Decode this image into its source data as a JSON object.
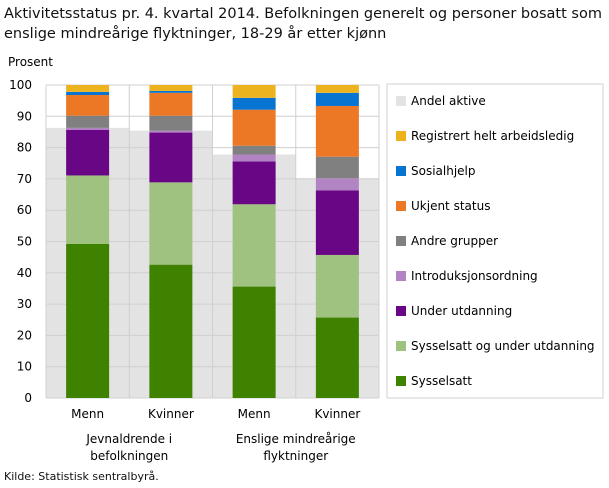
{
  "chart_data": {
    "type": "bar",
    "stacked": true,
    "title": "Aktivitetsstatus pr. 4. kvartal 2014. Befolkningen generelt og personer bosatt som enslige mindreårige flyktninger, 18-29 år etter kjønn",
    "ylabel": "Prosent",
    "ylim": [
      0,
      100
    ],
    "yticks": [
      0,
      10,
      20,
      30,
      40,
      50,
      60,
      70,
      80,
      90,
      100
    ],
    "grid": true,
    "legend_position": "right",
    "categories": [
      "Menn",
      "Kvinner",
      "Menn",
      "Kvinner"
    ],
    "groups": [
      {
        "label": "Jevnaldrende i befolkningen",
        "categories": [
          0,
          1
        ]
      },
      {
        "label": "Enslige mindreårige flyktninger",
        "categories": [
          2,
          3
        ]
      }
    ],
    "background_series": {
      "name": "Andel aktive",
      "color": "#e3e3e3",
      "values": [
        86.3,
        85.4,
        77.8,
        70.2
      ]
    },
    "series": [
      {
        "name": "Sysselsatt",
        "color": "#3e8200",
        "values": [
          49.2,
          42.6,
          35.6,
          25.7
        ]
      },
      {
        "name": "Sysselsatt og under utdanning",
        "color": "#9fc280",
        "values": [
          21.9,
          26.3,
          26.3,
          20.0
        ]
      },
      {
        "name": "Under utdanning",
        "color": "#690686",
        "values": [
          14.6,
          15.9,
          13.7,
          20.6
        ]
      },
      {
        "name": "Introduksjonsordning",
        "color": "#b384c3",
        "values": [
          0.6,
          0.6,
          2.2,
          3.9
        ]
      },
      {
        "name": "Andre grupper",
        "color": "#808080",
        "values": [
          3.9,
          4.8,
          2.8,
          6.9
        ]
      },
      {
        "name": "Ukjent status",
        "color": "#ec7724",
        "values": [
          6.6,
          7.3,
          11.5,
          16.2
        ]
      },
      {
        "name": "Sosialhjelp",
        "color": "#0774d1",
        "values": [
          1.0,
          0.6,
          3.8,
          4.2
        ]
      },
      {
        "name": "Registrert helt arbeidsledig",
        "color": "#edb31f",
        "values": [
          2.2,
          1.9,
          4.1,
          2.5
        ]
      }
    ]
  },
  "source": "Kilde: Statistisk sentralbyrå."
}
